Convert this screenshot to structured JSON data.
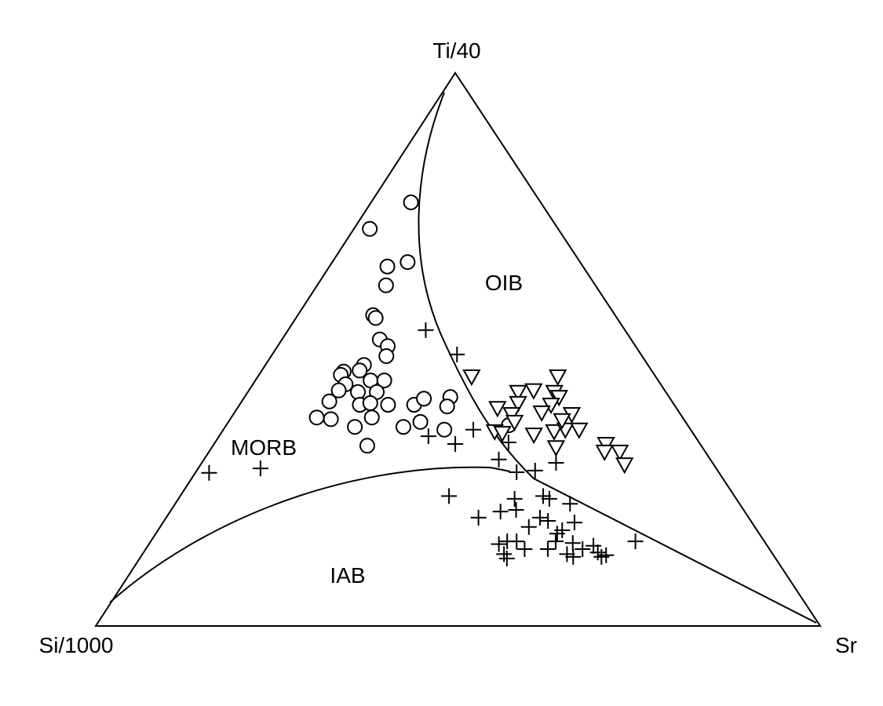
{
  "chart_data": {
    "type": "ternary",
    "apex_labels": {
      "top": "Ti/40",
      "left": "Si/1000",
      "right": "Sr"
    },
    "annotations": [
      "OIB",
      "MORB",
      "IAB"
    ],
    "lim": [
      0,
      100
    ],
    "series": [
      {
        "marker": "circle",
        "ti": [
          76.6,
          71.8,
          65.0,
          65.8,
          61.6,
          56.2,
          55.7,
          51.8,
          50.6,
          48.8,
          47.2,
          46.2,
          46.0,
          45.4,
          44.4,
          44.4,
          43.7,
          42.3,
          42.3,
          42.6,
          40.6,
          40.0,
          40.3,
          40.0,
          40.0,
          41.1,
          41.4,
          39.7,
          37.7,
          37.4,
          37.7,
          36.0,
          36.0,
          36.9,
          35.5,
          32.6,
          36.3
        ],
        "sr": [
          5.5,
          2.2,
          8.0,
          10.4,
          9.5,
          10.4,
          11.0,
          13.5,
          15.2,
          15.9,
          13.6,
          13.5,
          11.4,
          11.3,
          15.9,
          17.8,
          12.8,
          15.2,
          17.8,
          12.4,
          12.1,
          16.6,
          17.9,
          20.5,
          24.1,
          24.9,
          28.4,
          28.8,
          11.8,
          13.9,
          19.4,
          17.9,
          24.6,
          26.5,
          30.5,
          21.3,
          39.0
        ]
      },
      {
        "marker": "triangle",
        "ti": [
          45.1,
          45.1,
          42.6,
          42.3,
          42.3,
          41.4,
          39.4,
          40.3,
          40.0,
          38.3,
          38.6,
          38.3,
          35.2,
          34.9,
          34.6,
          35.2,
          35.5,
          35.5,
          32.3,
          32.9,
          31.5,
          31.5,
          29.2,
          36.9,
          37.2
        ],
        "sr": [
          29.5,
          41.4,
          39.3,
          37.3,
          42.3,
          43.4,
          35.9,
          38.3,
          43.0,
          46.7,
          42.4,
          38.4,
          37.6,
          38.8,
          43.3,
          45.8,
          47.2,
          49.1,
          47.5,
          54.1,
          56.7,
          54.6,
          58.5,
          39.5,
          45.9
        ]
      },
      {
        "marker": "cross",
        "ti": [
          53.5,
          49.1,
          35.5,
          34.3,
          32.9,
          30.1,
          33.2,
          27.8,
          28.1,
          29.5,
          27.7,
          28.5,
          23.5,
          19.6,
          20.7,
          23.0,
          21.0,
          23.5,
          23.0,
          22.1,
          19.6,
          19.0,
          18.7,
          17.9,
          16.7,
          17.3,
          15.3,
          15.3,
          14.8,
          15.3,
          13.0,
          13.9,
          13.9,
          15.0,
          13.0,
          12.5,
          14.5,
          13.3,
          12.5,
          12.8,
          15.3,
          13.9,
          12.2
        ],
        "sr": [
          19.0,
          25.5,
          34.5,
          28.9,
          33.3,
          40.7,
          40.5,
          44.3,
          46.7,
          48.9,
          1.9,
          8.6,
          37.1,
          43.1,
          45.6,
          46.4,
          47.6,
          50.1,
          51.2,
          54.5,
          51.6,
          53.0,
          56.8,
          50.9,
          55.4,
          55.8,
          55.9,
          49.2,
          48.3,
          50.5,
          49.9,
          52.3,
          55.5,
          58.4,
          58.6,
          59.7,
          61.5,
          62.7,
          63.6,
          64.1,
          66.9,
          60.3,
          50.7
        ]
      }
    ]
  }
}
